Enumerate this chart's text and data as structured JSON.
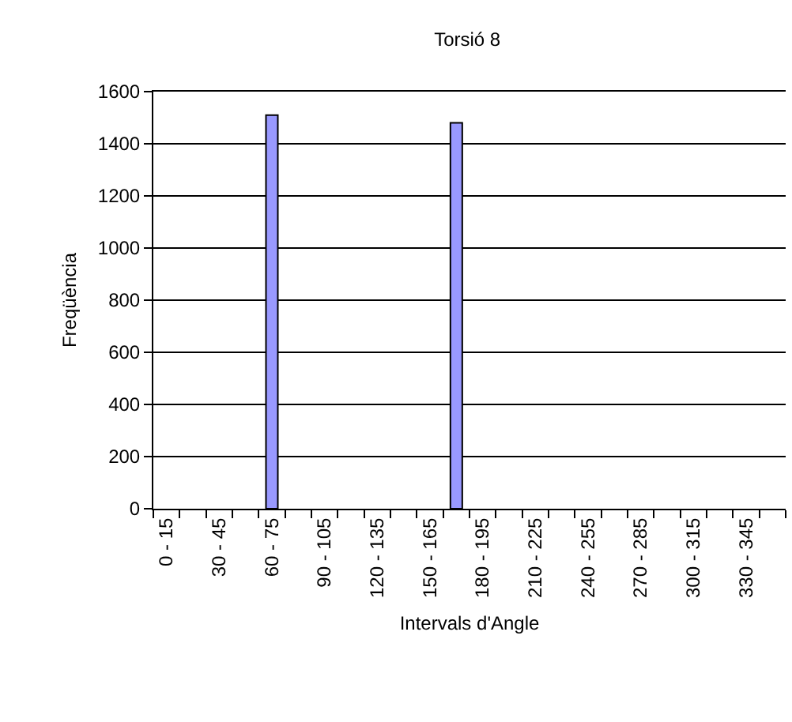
{
  "chart_data": {
    "type": "bar",
    "title": "Torsió 8",
    "xlabel": "Intervals d'Angle",
    "ylabel": "Freqüència",
    "categories": [
      "0 - 15",
      null,
      "30 - 45",
      null,
      "60 - 75",
      null,
      "90 - 105",
      null,
      "120 - 135",
      null,
      "150 - 165",
      null,
      "180 - 195",
      null,
      "210 - 225",
      null,
      "240 - 255",
      null,
      "270 - 285",
      null,
      "300 - 315",
      null,
      "330 - 345",
      null
    ],
    "values": [
      0,
      0,
      0,
      0,
      1510,
      0,
      0,
      0,
      0,
      0,
      0,
      1480,
      0,
      0,
      0,
      0,
      0,
      0,
      0,
      0,
      0,
      0,
      0,
      0
    ],
    "color": "#9999ff",
    "ylim": [
      0,
      1600
    ],
    "yticks": [
      0,
      200,
      400,
      600,
      800,
      1000,
      1200,
      1400,
      1600
    ],
    "grid": "y",
    "legend": false
  }
}
